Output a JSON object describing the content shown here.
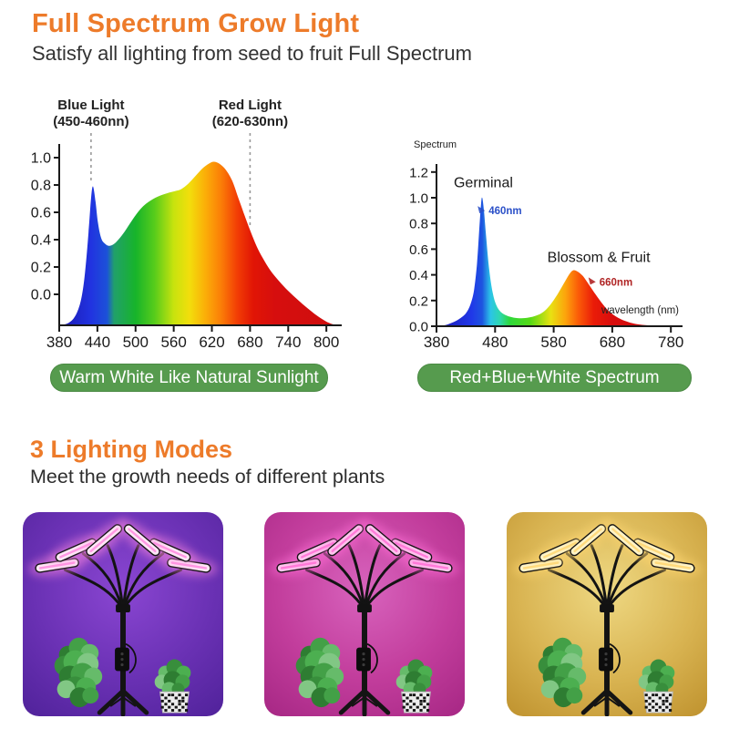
{
  "theme": {
    "accent": "#ED7B2A",
    "badge_bg": "#569B4E",
    "badge_border": "#4A8A43"
  },
  "header": {
    "title": "Full Spectrum Grow Light",
    "subtitle": "Satisfy all lighting from seed to fruit Full Spectrum"
  },
  "section2": {
    "title": "3 Lighting Modes",
    "subtitle": "Meet the growth needs of different plants"
  },
  "chart_data": [
    {
      "type": "area",
      "name": "warm-white-spectrum",
      "caption": "Warm White Like Natural Sunlight",
      "xlim": [
        380,
        815
      ],
      "ylim": [
        -0.23,
        1.12
      ],
      "x_ticks": [
        380,
        440,
        500,
        560,
        620,
        680,
        740,
        800
      ],
      "y_ticks": [
        0.0,
        0.2,
        0.4,
        0.6,
        0.8,
        1.0
      ],
      "baseline": -0.227,
      "grid": false,
      "annotations": [
        {
          "line1": "Blue Light",
          "line2": "(450-460nn)",
          "x": 430,
          "drop_to": 0.82
        },
        {
          "line1": "Red Light",
          "line2": "(620-630nn)",
          "x": 680,
          "drop_to": 0.5
        }
      ],
      "points": [
        [
          380,
          -0.225
        ],
        [
          392,
          -0.215
        ],
        [
          402,
          -0.18
        ],
        [
          410,
          -0.11
        ],
        [
          416,
          0.0
        ],
        [
          421,
          0.18
        ],
        [
          426,
          0.45
        ],
        [
          430,
          0.7
        ],
        [
          433,
          0.79
        ],
        [
          437,
          0.68
        ],
        [
          441,
          0.52
        ],
        [
          446,
          0.41
        ],
        [
          452,
          0.37
        ],
        [
          458,
          0.355
        ],
        [
          465,
          0.365
        ],
        [
          473,
          0.4
        ],
        [
          483,
          0.46
        ],
        [
          495,
          0.545
        ],
        [
          508,
          0.625
        ],
        [
          520,
          0.675
        ],
        [
          535,
          0.715
        ],
        [
          550,
          0.74
        ],
        [
          562,
          0.755
        ],
        [
          572,
          0.77
        ],
        [
          583,
          0.81
        ],
        [
          594,
          0.865
        ],
        [
          605,
          0.92
        ],
        [
          615,
          0.955
        ],
        [
          623,
          0.97
        ],
        [
          632,
          0.955
        ],
        [
          642,
          0.91
        ],
        [
          652,
          0.83
        ],
        [
          662,
          0.7
        ],
        [
          672,
          0.57
        ],
        [
          680,
          0.47
        ],
        [
          690,
          0.355
        ],
        [
          700,
          0.265
        ],
        [
          712,
          0.175
        ],
        [
          725,
          0.1
        ],
        [
          740,
          0.025
        ],
        [
          755,
          -0.04
        ],
        [
          770,
          -0.1
        ],
        [
          785,
          -0.155
        ],
        [
          800,
          -0.2
        ],
        [
          812,
          -0.222
        ]
      ],
      "gradient": [
        {
          "o": 0,
          "c": "#1c17b0"
        },
        {
          "o": 0.116,
          "c": "#2133e0"
        },
        {
          "o": 0.174,
          "c": "#1c52d8"
        },
        {
          "o": 0.2,
          "c": "#21a06a"
        },
        {
          "o": 0.278,
          "c": "#17b42a"
        },
        {
          "o": 0.347,
          "c": "#57cc1b"
        },
        {
          "o": 0.417,
          "c": "#c8e30e"
        },
        {
          "o": 0.474,
          "c": "#f2de0c"
        },
        {
          "o": 0.532,
          "c": "#fbae08"
        },
        {
          "o": 0.59,
          "c": "#fb7d07"
        },
        {
          "o": 0.648,
          "c": "#f23d05"
        },
        {
          "o": 0.706,
          "c": "#e11505"
        },
        {
          "o": 0.787,
          "c": "#d60e0e"
        },
        {
          "o": 1,
          "c": "#cf0d0d"
        }
      ]
    },
    {
      "type": "area",
      "name": "red-blue-white-spectrum",
      "caption": "Red+Blue+White Spectrum",
      "corner_label": "Spectrum",
      "xlabel": "wavelength (nm)",
      "xlim": [
        380,
        790
      ],
      "ylim": [
        0,
        1.28
      ],
      "x_ticks": [
        380,
        480,
        580,
        680,
        780
      ],
      "y_ticks": [
        0.0,
        0.2,
        0.4,
        0.6,
        0.8,
        1.0,
        1.2
      ],
      "baseline": 0,
      "grid": false,
      "labels": [
        {
          "text": "Germinal",
          "x": 460,
          "y": 1.08,
          "color": "#1a1a1a",
          "size": 16
        },
        {
          "text": "Blossom & Fruit",
          "x": 657,
          "y": 0.5,
          "color": "#1a1a1a",
          "size": 16
        }
      ],
      "value_markers": [
        {
          "text": "460nm",
          "x": 469,
          "y": 0.9,
          "color": "#2b50c8"
        },
        {
          "text": "660nm",
          "x": 658,
          "y": 0.345,
          "color": "#b02525"
        }
      ],
      "points": [
        [
          380,
          0
        ],
        [
          396,
          0.01
        ],
        [
          408,
          0.03
        ],
        [
          420,
          0.06
        ],
        [
          430,
          0.1
        ],
        [
          438,
          0.17
        ],
        [
          444,
          0.28
        ],
        [
          449,
          0.48
        ],
        [
          453,
          0.75
        ],
        [
          456,
          0.95
        ],
        [
          458,
          1.0
        ],
        [
          461,
          0.9
        ],
        [
          465,
          0.68
        ],
        [
          470,
          0.44
        ],
        [
          476,
          0.26
        ],
        [
          482,
          0.165
        ],
        [
          490,
          0.11
        ],
        [
          500,
          0.082
        ],
        [
          512,
          0.067
        ],
        [
          525,
          0.062
        ],
        [
          538,
          0.068
        ],
        [
          550,
          0.082
        ],
        [
          562,
          0.11
        ],
        [
          574,
          0.165
        ],
        [
          586,
          0.245
        ],
        [
          597,
          0.33
        ],
        [
          606,
          0.4
        ],
        [
          613,
          0.435
        ],
        [
          621,
          0.425
        ],
        [
          630,
          0.39
        ],
        [
          640,
          0.325
        ],
        [
          652,
          0.245
        ],
        [
          664,
          0.17
        ],
        [
          676,
          0.11
        ],
        [
          690,
          0.066
        ],
        [
          704,
          0.038
        ],
        [
          718,
          0.02
        ],
        [
          736,
          0.009
        ],
        [
          756,
          0.003
        ],
        [
          780,
          0.0
        ]
      ],
      "gradient": [
        {
          "o": 0,
          "c": "#1c17b0"
        },
        {
          "o": 0.15,
          "c": "#2038e8"
        },
        {
          "o": 0.195,
          "c": "#1e55e0"
        },
        {
          "o": 0.23,
          "c": "#2bc3e8"
        },
        {
          "o": 0.27,
          "c": "#2ed8b0"
        },
        {
          "o": 0.3125,
          "c": "#2ed83c"
        },
        {
          "o": 0.4,
          "c": "#56d916"
        },
        {
          "o": 0.4875,
          "c": "#e8e112"
        },
        {
          "o": 0.55,
          "c": "#fca40c"
        },
        {
          "o": 0.605,
          "c": "#fb5c08"
        },
        {
          "o": 0.67,
          "c": "#ea1c08"
        },
        {
          "o": 0.75,
          "c": "#d90d0d"
        },
        {
          "o": 1,
          "c": "#c90c0c"
        }
      ]
    }
  ],
  "modes": [
    {
      "name": "purple-grow-mode",
      "bg_center": "#8a46d2",
      "bg_mid": "#6a31b4",
      "bg_edge": "#50229a",
      "bar_fill": "#ffe6f6",
      "bar_glow": "#ff8ae0"
    },
    {
      "name": "pink-grow-mode",
      "bg_center": "#d863bd",
      "bg_mid": "#c23d9c",
      "bg_edge": "#a62784",
      "bar_fill": "#ffc4ee",
      "bar_glow": "#ff6fd6"
    },
    {
      "name": "warm-white-grow-mode",
      "bg_center": "#eed882",
      "bg_mid": "#d9b452",
      "bg_edge": "#bf922e",
      "bar_fill": "#fff3c6",
      "bar_glow": "#ffd772"
    }
  ]
}
